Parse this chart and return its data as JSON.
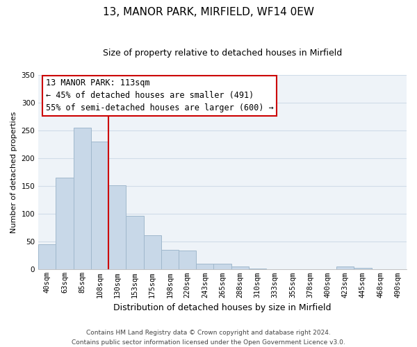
{
  "title": "13, MANOR PARK, MIRFIELD, WF14 0EW",
  "subtitle": "Size of property relative to detached houses in Mirfield",
  "xlabel": "Distribution of detached houses by size in Mirfield",
  "ylabel": "Number of detached properties",
  "bar_labels": [
    "40sqm",
    "63sqm",
    "85sqm",
    "108sqm",
    "130sqm",
    "153sqm",
    "175sqm",
    "198sqm",
    "220sqm",
    "243sqm",
    "265sqm",
    "288sqm",
    "310sqm",
    "333sqm",
    "355sqm",
    "378sqm",
    "400sqm",
    "423sqm",
    "445sqm",
    "468sqm",
    "490sqm"
  ],
  "bar_values": [
    46,
    165,
    255,
    230,
    152,
    96,
    62,
    35,
    34,
    11,
    10,
    5,
    2,
    1,
    1,
    0,
    0,
    5,
    3,
    0,
    1
  ],
  "bar_color": "#c8d8e8",
  "bar_edge_color": "#a0b8cc",
  "vline_color": "#cc0000",
  "vline_x_index": 3,
  "annotation_line1": "13 MANOR PARK: 113sqm",
  "annotation_line2": "← 45% of detached houses are smaller (491)",
  "annotation_line3": "55% of semi-detached houses are larger (600) →",
  "annotation_box_color": "#ffffff",
  "annotation_box_edge": "#cc0000",
  "ylim": [
    0,
    350
  ],
  "yticks": [
    0,
    50,
    100,
    150,
    200,
    250,
    300,
    350
  ],
  "footer_line1": "Contains HM Land Registry data © Crown copyright and database right 2024.",
  "footer_line2": "Contains public sector information licensed under the Open Government Licence v3.0.",
  "title_fontsize": 11,
  "subtitle_fontsize": 9,
  "xlabel_fontsize": 9,
  "ylabel_fontsize": 8,
  "tick_fontsize": 7.5,
  "annotation_fontsize": 8.5,
  "footer_fontsize": 6.5,
  "grid_color": "#d0dce8",
  "bg_color": "#eef3f8"
}
